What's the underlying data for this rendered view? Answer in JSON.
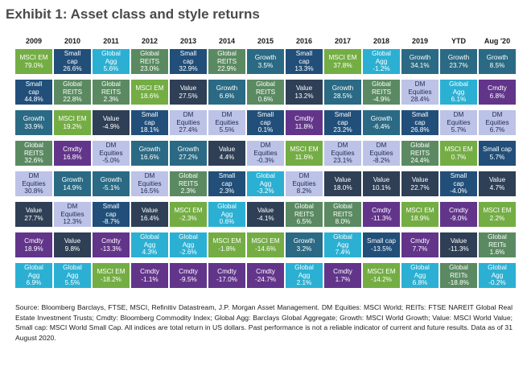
{
  "title": "Exhibit 1: Asset class and style returns",
  "columns": [
    "2009",
    "2010",
    "2011",
    "2012",
    "2013",
    "2014",
    "2015",
    "2016",
    "2017",
    "2018",
    "2019",
    "YTD",
    "Aug '20"
  ],
  "colors": {
    "msci_em": "#74ad44",
    "small_cap": "#214f79",
    "global_agg": "#2bb0d3",
    "global_reits": "#5b8a62",
    "growth": "#2b6a84",
    "value": "#2f3f55",
    "dm_equities": "#bdc3e6",
    "cmdty": "#62358a"
  },
  "chart_data": {
    "type": "table",
    "title": "Exhibit 1: Asset class and style returns",
    "columns": [
      "2009",
      "2010",
      "2011",
      "2012",
      "2013",
      "2014",
      "2015",
      "2016",
      "2017",
      "2018",
      "2019",
      "YTD",
      "Aug '20"
    ],
    "rows": [
      [
        [
          "MSCI EM",
          "79.0%",
          "msci_em"
        ],
        [
          "Small cap",
          "26.6%",
          "small_cap"
        ],
        [
          "Global Agg",
          "5.6%",
          "global_agg"
        ],
        [
          "Global REITS",
          "23.0%",
          "global_reits"
        ],
        [
          "Small cap",
          "32.9%",
          "small_cap"
        ],
        [
          "Global REITS",
          "22.9%",
          "global_reits"
        ],
        [
          "Growth",
          "3.5%",
          "growth"
        ],
        [
          "Small cap",
          "13.3%",
          "small_cap"
        ],
        [
          "MSCI EM",
          "37.8%",
          "msci_em"
        ],
        [
          "Global Agg",
          "-1.2%",
          "global_agg"
        ],
        [
          "Growth",
          "34.1%",
          "growth"
        ],
        [
          "Growth",
          "23.7%",
          "growth"
        ],
        [
          "Growth",
          "8.5%",
          "growth"
        ]
      ],
      [
        [
          "Small cap",
          "44.8%",
          "small_cap"
        ],
        [
          "Global REITS",
          "22.8%",
          "global_reits"
        ],
        [
          "Global REITS",
          "2.3%",
          "global_reits"
        ],
        [
          "MSCI EM",
          "18.6%",
          "msci_em"
        ],
        [
          "Value",
          "27.5%",
          "value"
        ],
        [
          "Growth",
          "6.6%",
          "growth"
        ],
        [
          "Global REITS",
          "0.6%",
          "global_reits"
        ],
        [
          "Value",
          "13.2%",
          "value"
        ],
        [
          "Growth",
          "28.5%",
          "growth"
        ],
        [
          "Global REITS",
          "-4.9%",
          "global_reits"
        ],
        [
          "DM Equities",
          "28.4%",
          "dm_equities"
        ],
        [
          "Global Agg",
          "6.1%",
          "global_agg"
        ],
        [
          "Cmdty",
          "6.8%",
          "cmdty"
        ]
      ],
      [
        [
          "Growth",
          "33.9%",
          "growth"
        ],
        [
          "MSCI EM",
          "19.2%",
          "msci_em"
        ],
        [
          "Value",
          "-4.9%",
          "value"
        ],
        [
          "Small cap",
          "18.1%",
          "small_cap"
        ],
        [
          "DM Equities",
          "27.4%",
          "dm_equities"
        ],
        [
          "DM Equities",
          "5.5%",
          "dm_equities"
        ],
        [
          "Small cap",
          "0.1%",
          "small_cap"
        ],
        [
          "Cmdty",
          "11.8%",
          "cmdty"
        ],
        [
          "Small cap",
          "23.2%",
          "small_cap"
        ],
        [
          "Growth",
          "-6.4%",
          "growth"
        ],
        [
          "Small cap",
          "26.8%",
          "small_cap"
        ],
        [
          "DM Equities",
          "5.7%",
          "dm_equities"
        ],
        [
          "DM Equities",
          "6.7%",
          "dm_equities"
        ]
      ],
      [
        [
          "Global REITS",
          "32.6%",
          "global_reits"
        ],
        [
          "Cmdty",
          "16.8%",
          "cmdty"
        ],
        [
          "DM Equities",
          "-5.0%",
          "dm_equities"
        ],
        [
          "Growth",
          "16.6%",
          "growth"
        ],
        [
          "Growth",
          "27.2%",
          "growth"
        ],
        [
          "Value",
          "4.4%",
          "value"
        ],
        [
          "DM Equities",
          "-0.3%",
          "dm_equities"
        ],
        [
          "MSCI EM",
          "11.6%",
          "msci_em"
        ],
        [
          "DM Equities",
          "23.1%",
          "dm_equities"
        ],
        [
          "DM Equities",
          "-8.2%",
          "dm_equities"
        ],
        [
          "Global REITS",
          "24.4%",
          "global_reits"
        ],
        [
          "MSCI EM",
          "0.7%",
          "msci_em"
        ],
        [
          "Small cap",
          "5.7%",
          "small_cap"
        ]
      ],
      [
        [
          "DM Equities",
          "30.8%",
          "dm_equities"
        ],
        [
          "Growth",
          "14.9%",
          "growth"
        ],
        [
          "Growth",
          "-5.1%",
          "growth"
        ],
        [
          "DM Equities",
          "16.5%",
          "dm_equities"
        ],
        [
          "Global REITS",
          "2.3%",
          "global_reits"
        ],
        [
          "Small cap",
          "2.3%",
          "small_cap"
        ],
        [
          "Global Agg",
          "-3.2%",
          "global_agg"
        ],
        [
          "DM Equities",
          "8.2%",
          "dm_equities"
        ],
        [
          "Value",
          "18.0%",
          "value"
        ],
        [
          "Value",
          "10.1%",
          "value"
        ],
        [
          "Value",
          "22.7%",
          "value"
        ],
        [
          "Small cap",
          "-4.0%",
          "small_cap"
        ],
        [
          "Value",
          "4.7%",
          "value"
        ]
      ],
      [
        [
          "Value",
          "27.7%",
          "value"
        ],
        [
          "DM Equities",
          "12.3%",
          "dm_equities"
        ],
        [
          "Small cap",
          "-8.7%",
          "small_cap"
        ],
        [
          "Value",
          "16.4%",
          "value"
        ],
        [
          "MSCI EM",
          "-2.3%",
          "msci_em"
        ],
        [
          "Global Agg",
          "0.6%",
          "global_agg"
        ],
        [
          "Value",
          "-4.1%",
          "value"
        ],
        [
          "Global REITS",
          "6.5%",
          "global_reits"
        ],
        [
          "Global REITS",
          "8.0%",
          "global_reits"
        ],
        [
          "Cmdty",
          "-11.3%",
          "cmdty"
        ],
        [
          "MSCI EM",
          "18.9%",
          "msci_em"
        ],
        [
          "Cmdty",
          "-9.0%",
          "cmdty"
        ],
        [
          "MSCI EM",
          "2.2%",
          "msci_em"
        ]
      ],
      [
        [
          "Cmdty",
          "18.9%",
          "cmdty"
        ],
        [
          "Value",
          "9.8%",
          "value"
        ],
        [
          "Cmdty",
          "-13.3%",
          "cmdty"
        ],
        [
          "Global Agg",
          "4.3%",
          "global_agg"
        ],
        [
          "Global Agg",
          "-2.6%",
          "global_agg"
        ],
        [
          "MSCI EM",
          "-1.8%",
          "msci_em"
        ],
        [
          "MSCI EM",
          "-14.6%",
          "msci_em"
        ],
        [
          "Growth",
          "3.2%",
          "growth"
        ],
        [
          "Global Agg",
          "7.4%",
          "global_agg"
        ],
        [
          "Small cap",
          "-13.5%",
          "small_cap"
        ],
        [
          "Cmdty",
          "7.7%",
          "cmdty"
        ],
        [
          "Value",
          "-11.3%",
          "value"
        ],
        [
          "Global REITs",
          "1.6%",
          "global_reits"
        ]
      ],
      [
        [
          "Global Agg",
          "6.9%",
          "global_agg"
        ],
        [
          "Global Agg",
          "5.5%",
          "global_agg"
        ],
        [
          "MSCI EM",
          "-18.2%",
          "msci_em"
        ],
        [
          "Cmdty",
          "-1.1%",
          "cmdty"
        ],
        [
          "Cmdty",
          "-9.5%",
          "cmdty"
        ],
        [
          "Cmdty",
          "-17.0%",
          "cmdty"
        ],
        [
          "Cmdty",
          "-24.7%",
          "cmdty"
        ],
        [
          "Global Agg",
          "2.1%",
          "global_agg"
        ],
        [
          "Cmdty",
          "1.7%",
          "cmdty"
        ],
        [
          "MSCI EM",
          "-14.2%",
          "msci_em"
        ],
        [
          "Global Agg",
          "6.8%",
          "global_agg"
        ],
        [
          "Global REITs",
          "-18.8%",
          "global_reits"
        ],
        [
          "Global Agg",
          "-0.2%",
          "global_agg"
        ]
      ]
    ]
  },
  "source": "Source: Bloomberg Barclays, FTSE, MSCI, Refinitiv Datastream, J.P. Morgan Asset Management. DM Equities: MSCI World; REITs: FTSE NAREIT Global Real Estate Investment Trusts; Cmdty: Bloomberg Commodity Index; Global Agg: Barclays Global Aggregate; Growth: MSCI World Growth; Value: MSCI World Value; Small cap: MSCI World Small Cap. All indices are total return in US dollars. Past performance is not a reliable indicator of current and future results. Data as of 31 August 2020."
}
